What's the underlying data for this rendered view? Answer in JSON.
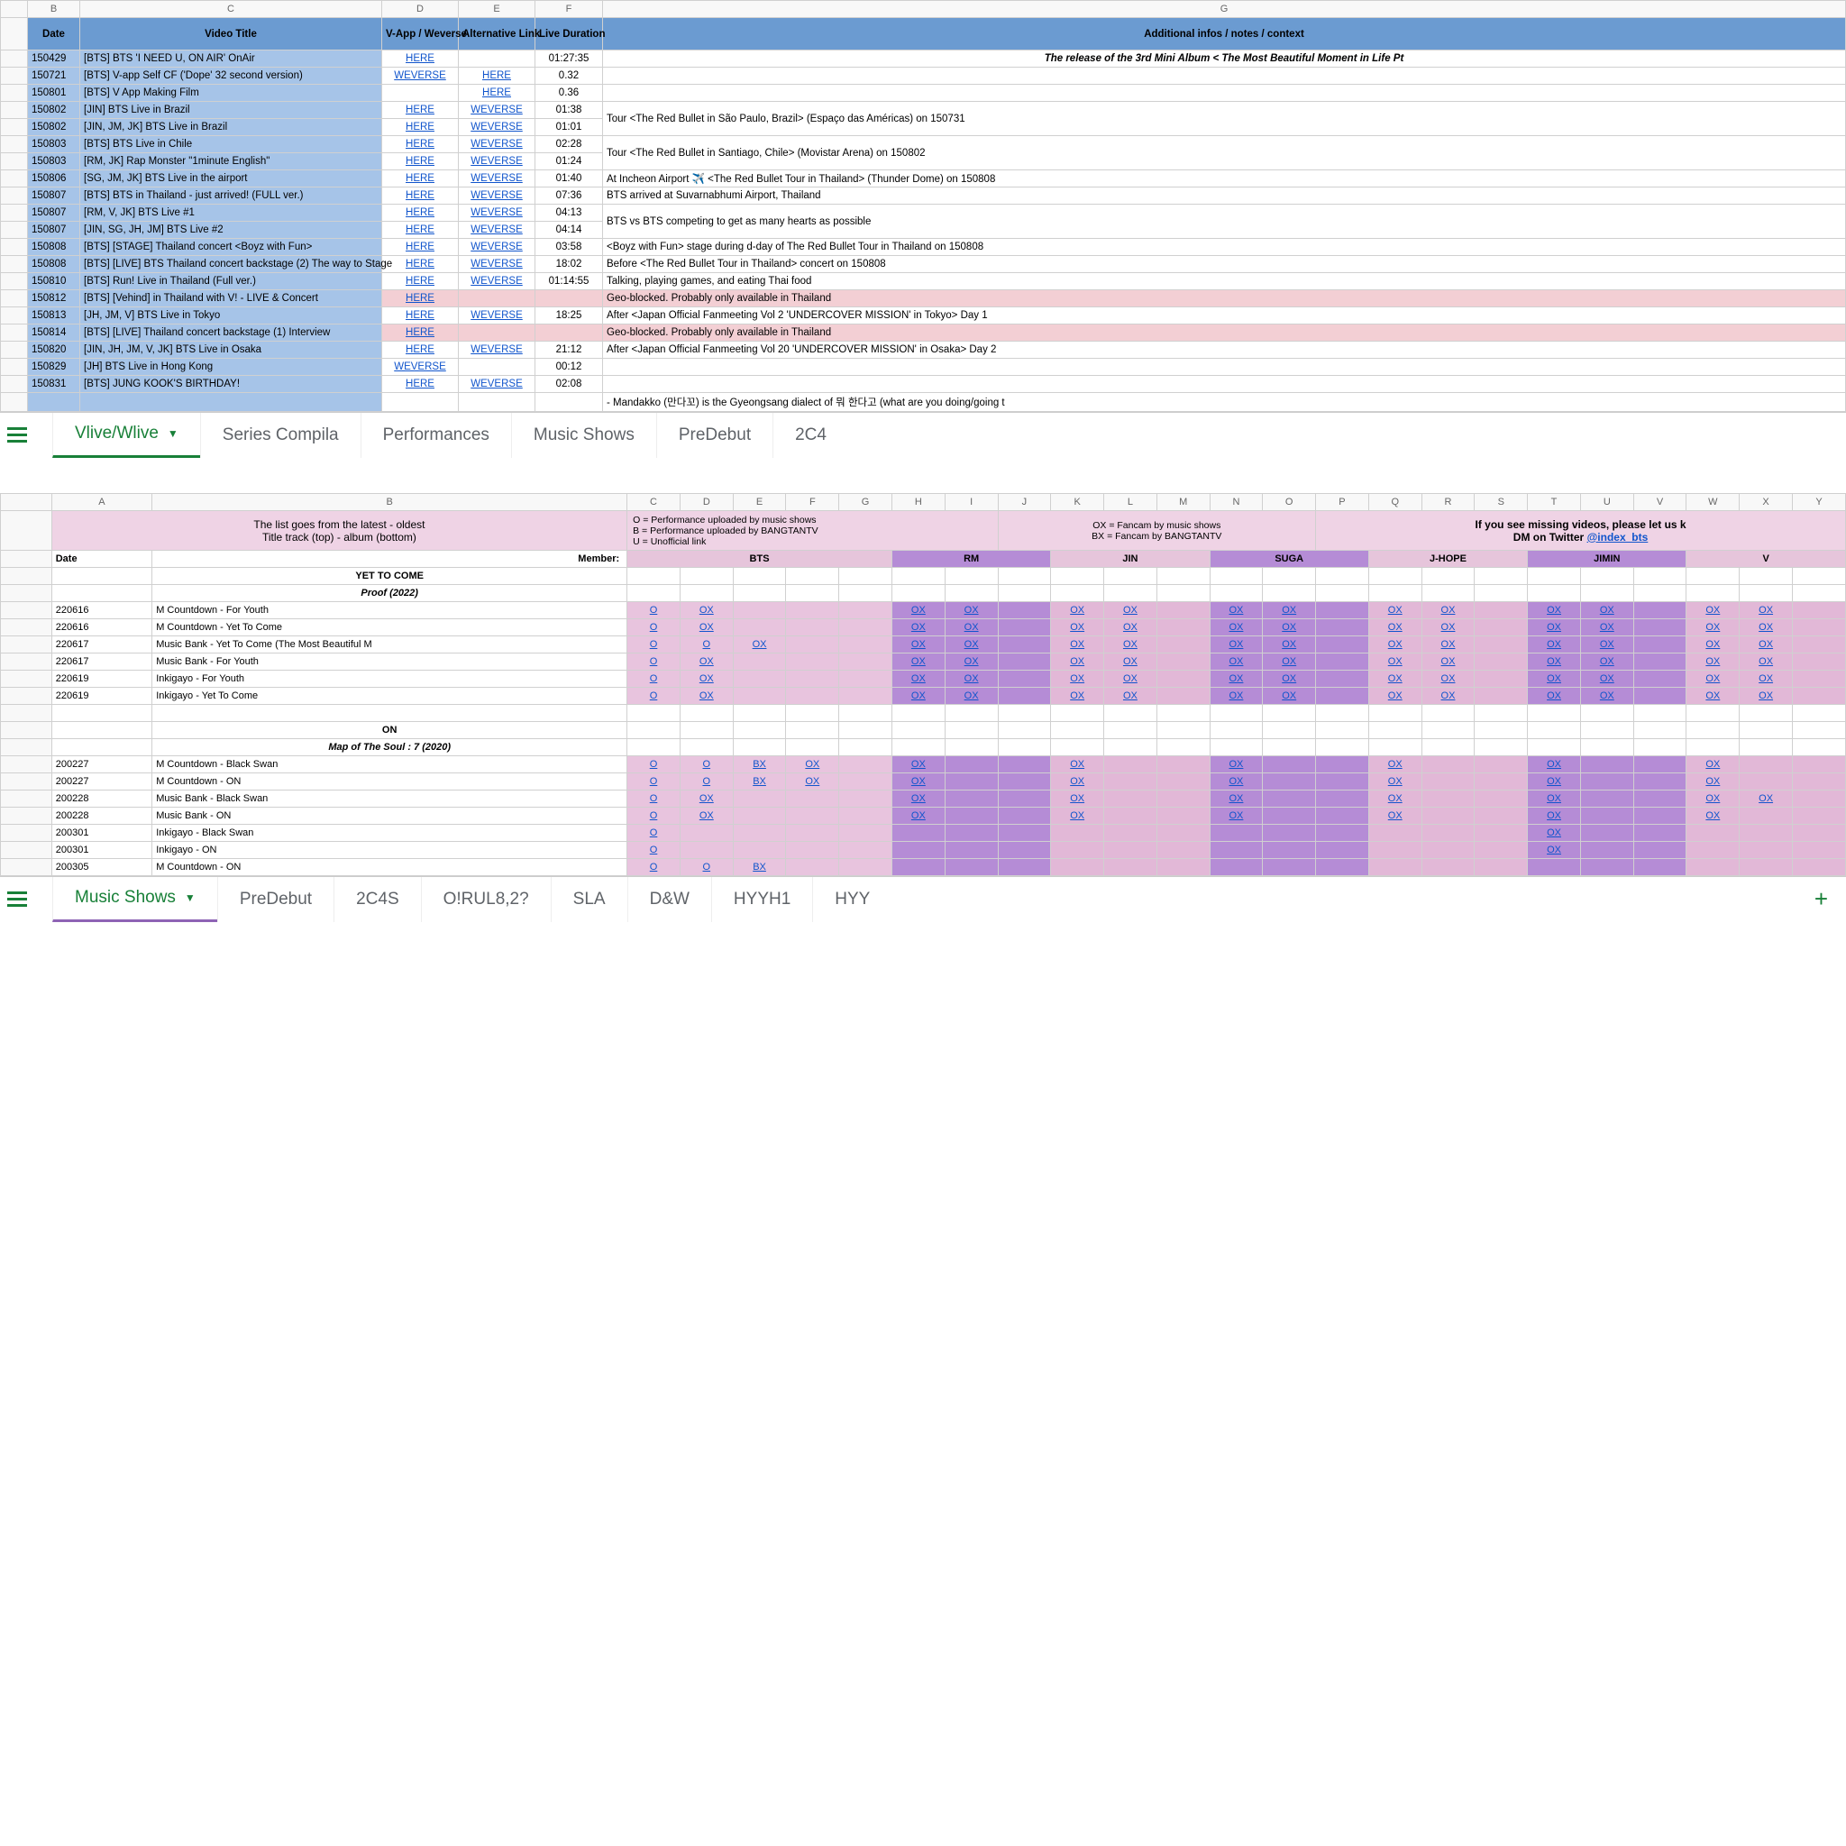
{
  "sheet1": {
    "cols": [
      "B",
      "C",
      "D",
      "E",
      "F",
      "G"
    ],
    "headers": {
      "date": "Date",
      "title": "Video Title",
      "vapp": "V-App / Weverse",
      "alt": "Alternative Link",
      "dur": "Live Duration",
      "notes": "Additional infos / notes / context"
    },
    "rows": [
      {
        "d": "150429",
        "t": "[BTS] BTS 'I NEED U, ON AIR' OnAir",
        "l1": "HERE",
        "l2": "",
        "dur": "01:27:35",
        "n": "The release of the 3rd Mini Album < The Most Beautiful Moment in Life Pt",
        "ni": true
      },
      {
        "d": "150721",
        "t": "[BTS] V-app Self CF ('Dope' 32 second version)",
        "l1": "WEVERSE",
        "l2": "HERE",
        "dur": "0.32",
        "n": ""
      },
      {
        "d": "150801",
        "t": "[BTS] V App Making Film",
        "l1": "",
        "l2": "HERE",
        "dur": "0.36",
        "n": ""
      },
      {
        "d": "150802",
        "t": "[JIN] BTS Live in Brazil",
        "l1": "HERE",
        "l2": "WEVERSE",
        "dur": "01:38",
        "n": "Tour <The Red Bullet in São Paulo, Brazil> (Espaço das Américas) on 150731",
        "span": 2
      },
      {
        "d": "150802",
        "t": "[JIN, JM, JK] BTS Live in Brazil",
        "l1": "HERE",
        "l2": "WEVERSE",
        "dur": "01:01",
        "merged": true
      },
      {
        "d": "150803",
        "t": "[BTS] BTS Live in Chile",
        "l1": "HERE",
        "l2": "WEVERSE",
        "dur": "02:28",
        "n": "Tour <The Red Bullet in Santiago, Chile> (Movistar Arena) on 150802",
        "span": 2
      },
      {
        "d": "150803",
        "t": "[RM, JK] Rap Monster \"1minute English\"",
        "l1": "HERE",
        "l2": "WEVERSE",
        "dur": "01:24",
        "merged": true
      },
      {
        "d": "150806",
        "t": "[SG, JM, JK] BTS Live in the airport",
        "l1": "HERE",
        "l2": "WEVERSE",
        "dur": "01:40",
        "n": "At Incheon Airport ✈️ <The Red Bullet Tour in Thailand> (Thunder Dome) on 150808"
      },
      {
        "d": "150807",
        "t": "[BTS] BTS in Thailand - just arrived! (FULL ver.)",
        "l1": "HERE",
        "l2": "WEVERSE",
        "dur": "07:36",
        "n": "BTS arrived at Suvarnabhumi Airport, Thailand"
      },
      {
        "d": "150807",
        "t": "[RM, V, JK] BTS Live #1",
        "l1": "HERE",
        "l2": "WEVERSE",
        "dur": "04:13",
        "n": "BTS vs BTS competing to get as many hearts as possible",
        "span": 2
      },
      {
        "d": "150807",
        "t": "[JIN, SG, JH, JM] BTS Live #2",
        "l1": "HERE",
        "l2": "WEVERSE",
        "dur": "04:14",
        "merged": true
      },
      {
        "d": "150808",
        "t": "[BTS] [STAGE] Thailand concert <Boyz with Fun>",
        "l1": "HERE",
        "l2": "WEVERSE",
        "dur": "03:58",
        "n": "<Boyz with Fun> stage during d-day of The Red Bullet Tour in Thailand on 150808"
      },
      {
        "d": "150808",
        "t": "[BTS] [LIVE] BTS Thailand concert backstage (2) The way to Stage",
        "l1": "HERE",
        "l2": "WEVERSE",
        "dur": "18:02",
        "n": "Before <The Red Bullet Tour in Thailand> concert on 150808"
      },
      {
        "d": "150810",
        "t": "[BTS] Run! Live in Thailand (Full ver.)",
        "l1": "HERE",
        "l2": "WEVERSE",
        "dur": "01:14:55",
        "n": "Talking, playing games, and eating Thai food"
      },
      {
        "d": "150812",
        "t": "[BTS] [Vehind] in Thailand with V! - LIVE & Concert",
        "l1": "HERE",
        "l2": "",
        "dur": "",
        "n": "Geo-blocked. Probably only available in Thailand",
        "pink": true
      },
      {
        "d": "150813",
        "t": "[JH, JM, V] BTS Live in Tokyo",
        "l1": "HERE",
        "l2": "WEVERSE",
        "dur": "18:25",
        "n": "After <Japan Official Fanmeeting Vol 2 'UNDERCOVER MISSION' in Tokyo> Day 1"
      },
      {
        "d": "150814",
        "t": "[BTS] [LIVE] Thailand concert backstage (1) Interview",
        "l1": "HERE",
        "l2": "",
        "dur": "",
        "n": "Geo-blocked. Probably only available in Thailand",
        "pink": true
      },
      {
        "d": "150820",
        "t": "[JIN, JH, JM, V, JK] BTS Live in Osaka",
        "l1": "HERE",
        "l2": "WEVERSE",
        "dur": "21:12",
        "n": "After <Japan Official Fanmeeting Vol 20 'UNDERCOVER MISSION' in Osaka> Day 2"
      },
      {
        "d": "150829",
        "t": "[JH] BTS Live in Hong Kong",
        "l1": "WEVERSE",
        "l2": "",
        "dur": "00:12",
        "n": ""
      },
      {
        "d": "150831",
        "t": "[BTS] JUNG KOOK'S BIRTHDAY!",
        "l1": "HERE",
        "l2": "WEVERSE",
        "dur": "02:08",
        "n": ""
      },
      {
        "d": "",
        "t": "",
        "l1": "",
        "l2": "",
        "dur": "",
        "n": "- Mandakko (만다꼬) is the Gyeongsang dialect of 뭐 한다고 (what are you doing/going t",
        "cut": true
      }
    ]
  },
  "tabs1": {
    "active": "Vlive/Wlive",
    "others": [
      "Series Compila",
      "Performances",
      "Music Shows",
      "PreDebut",
      "2C4"
    ]
  },
  "sheet2": {
    "cols": [
      "A",
      "B",
      "C",
      "D",
      "E",
      "F",
      "G",
      "H",
      "I",
      "J",
      "K",
      "L",
      "M",
      "N",
      "O",
      "P",
      "Q",
      "R",
      "S",
      "T",
      "U",
      "V",
      "W",
      "X",
      "Y"
    ],
    "hdr_left": "The list goes from the latest - oldest\nTitle track (top) - album (bottom)",
    "hdr_key": "O = Performance uploaded by music shows\nB = Performance uploaded by BANGTANTV\nU = Unofficial link",
    "hdr_ox": "OX = Fancam by music shows\nBX = Fancam by BANGTANTV",
    "hdr_right": "If you see missing videos, please let us k\nDM on Twitter ",
    "hdr_right_link": "@index_bts",
    "row2": {
      "date": "Date",
      "member": "Member:",
      "members": [
        "BTS",
        "RM",
        "JIN",
        "SUGA",
        "J-HOPE",
        "JIMIN",
        "V"
      ]
    },
    "sections": [
      {
        "title": "YET TO COME",
        "subtitle": "Proof (2022)",
        "rows": [
          {
            "d": "220616",
            "t": "M Countdown - For Youth",
            "c": [
              "O",
              "OX",
              "",
              "",
              "",
              "OX",
              "OX",
              "",
              "OX",
              "OX",
              "",
              "OX",
              "OX",
              "",
              "OX",
              "OX",
              "",
              "OX",
              "OX",
              "",
              "OX",
              "OX",
              ""
            ]
          },
          {
            "d": "220616",
            "t": "M Countdown - Yet To Come",
            "c": [
              "O",
              "OX",
              "",
              "",
              "",
              "OX",
              "OX",
              "",
              "OX",
              "OX",
              "",
              "OX",
              "OX",
              "",
              "OX",
              "OX",
              "",
              "OX",
              "OX",
              "",
              "OX",
              "OX",
              ""
            ]
          },
          {
            "d": "220617",
            "t": "Music Bank - Yet To Come (The Most Beautiful M",
            "c": [
              "O",
              "O",
              "OX",
              "",
              "",
              "OX",
              "OX",
              "",
              "OX",
              "OX",
              "",
              "OX",
              "OX",
              "",
              "OX",
              "OX",
              "",
              "OX",
              "OX",
              "",
              "OX",
              "OX",
              ""
            ]
          },
          {
            "d": "220617",
            "t": "Music Bank - For Youth",
            "c": [
              "O",
              "OX",
              "",
              "",
              "",
              "OX",
              "OX",
              "",
              "OX",
              "OX",
              "",
              "OX",
              "OX",
              "",
              "OX",
              "OX",
              "",
              "OX",
              "OX",
              "",
              "OX",
              "OX",
              ""
            ]
          },
          {
            "d": "220619",
            "t": "Inkigayo - For Youth",
            "c": [
              "O",
              "OX",
              "",
              "",
              "",
              "OX",
              "OX",
              "",
              "OX",
              "OX",
              "",
              "OX",
              "OX",
              "",
              "OX",
              "OX",
              "",
              "OX",
              "OX",
              "",
              "OX",
              "OX",
              ""
            ]
          },
          {
            "d": "220619",
            "t": "Inkigayo - Yet To Come",
            "c": [
              "O",
              "OX",
              "",
              "",
              "",
              "OX",
              "OX",
              "",
              "OX",
              "OX",
              "",
              "OX",
              "OX",
              "",
              "OX",
              "OX",
              "",
              "OX",
              "OX",
              "",
              "OX",
              "OX",
              ""
            ]
          }
        ]
      },
      {
        "title": "ON",
        "subtitle": "Map of The Soul : 7 (2020)",
        "rows": [
          {
            "d": "200227",
            "t": "M Countdown - Black Swan",
            "c": [
              "O",
              "O",
              "BX",
              "OX",
              "",
              "OX",
              "",
              "",
              "OX",
              "",
              "",
              "OX",
              "",
              "",
              "OX",
              "",
              "",
              "OX",
              "",
              "",
              "OX",
              "",
              ""
            ]
          },
          {
            "d": "200227",
            "t": "M Countdown - ON",
            "c": [
              "O",
              "O",
              "BX",
              "OX",
              "",
              "OX",
              "",
              "",
              "OX",
              "",
              "",
              "OX",
              "",
              "",
              "OX",
              "",
              "",
              "OX",
              "",
              "",
              "OX",
              "",
              ""
            ]
          },
          {
            "d": "200228",
            "t": "Music Bank - Black Swan",
            "c": [
              "O",
              "OX",
              "",
              "",
              "",
              "OX",
              "",
              "",
              "OX",
              "",
              "",
              "OX",
              "",
              "",
              "OX",
              "",
              "",
              "OX",
              "",
              "",
              "OX",
              "OX",
              ""
            ]
          },
          {
            "d": "200228",
            "t": "Music Bank - ON",
            "c": [
              "O",
              "OX",
              "",
              "",
              "",
              "OX",
              "",
              "",
              "OX",
              "",
              "",
              "OX",
              "",
              "",
              "OX",
              "",
              "",
              "OX",
              "",
              "",
              "OX",
              "",
              ""
            ]
          },
          {
            "d": "200301",
            "t": "Inkigayo - Black Swan",
            "c": [
              "O",
              "",
              "",
              "",
              "",
              "",
              "",
              "",
              "",
              "",
              "",
              "",
              "",
              "",
              "",
              "",
              "",
              "OX",
              "",
              "",
              "",
              "",
              ""
            ]
          },
          {
            "d": "200301",
            "t": "Inkigayo - ON",
            "c": [
              "O",
              "",
              "",
              "",
              "",
              "",
              "",
              "",
              "",
              "",
              "",
              "",
              "",
              "",
              "",
              "",
              "",
              "OX",
              "",
              "",
              "",
              "",
              ""
            ]
          },
          {
            "d": "200305",
            "t": "M Countdown - ON",
            "c": [
              "O",
              "O",
              "BX",
              "",
              "",
              "",
              "",
              "",
              "",
              "",
              "",
              "",
              "",
              "",
              "",
              "",
              "",
              "",
              "",
              "",
              "",
              "",
              ""
            ]
          }
        ]
      }
    ]
  },
  "tabs2": {
    "active": "Music Shows",
    "others": [
      "PreDebut",
      "2C4S",
      "O!RUL8,2?",
      "SLA",
      "D&W",
      "HYYH1",
      "HYY"
    ]
  }
}
